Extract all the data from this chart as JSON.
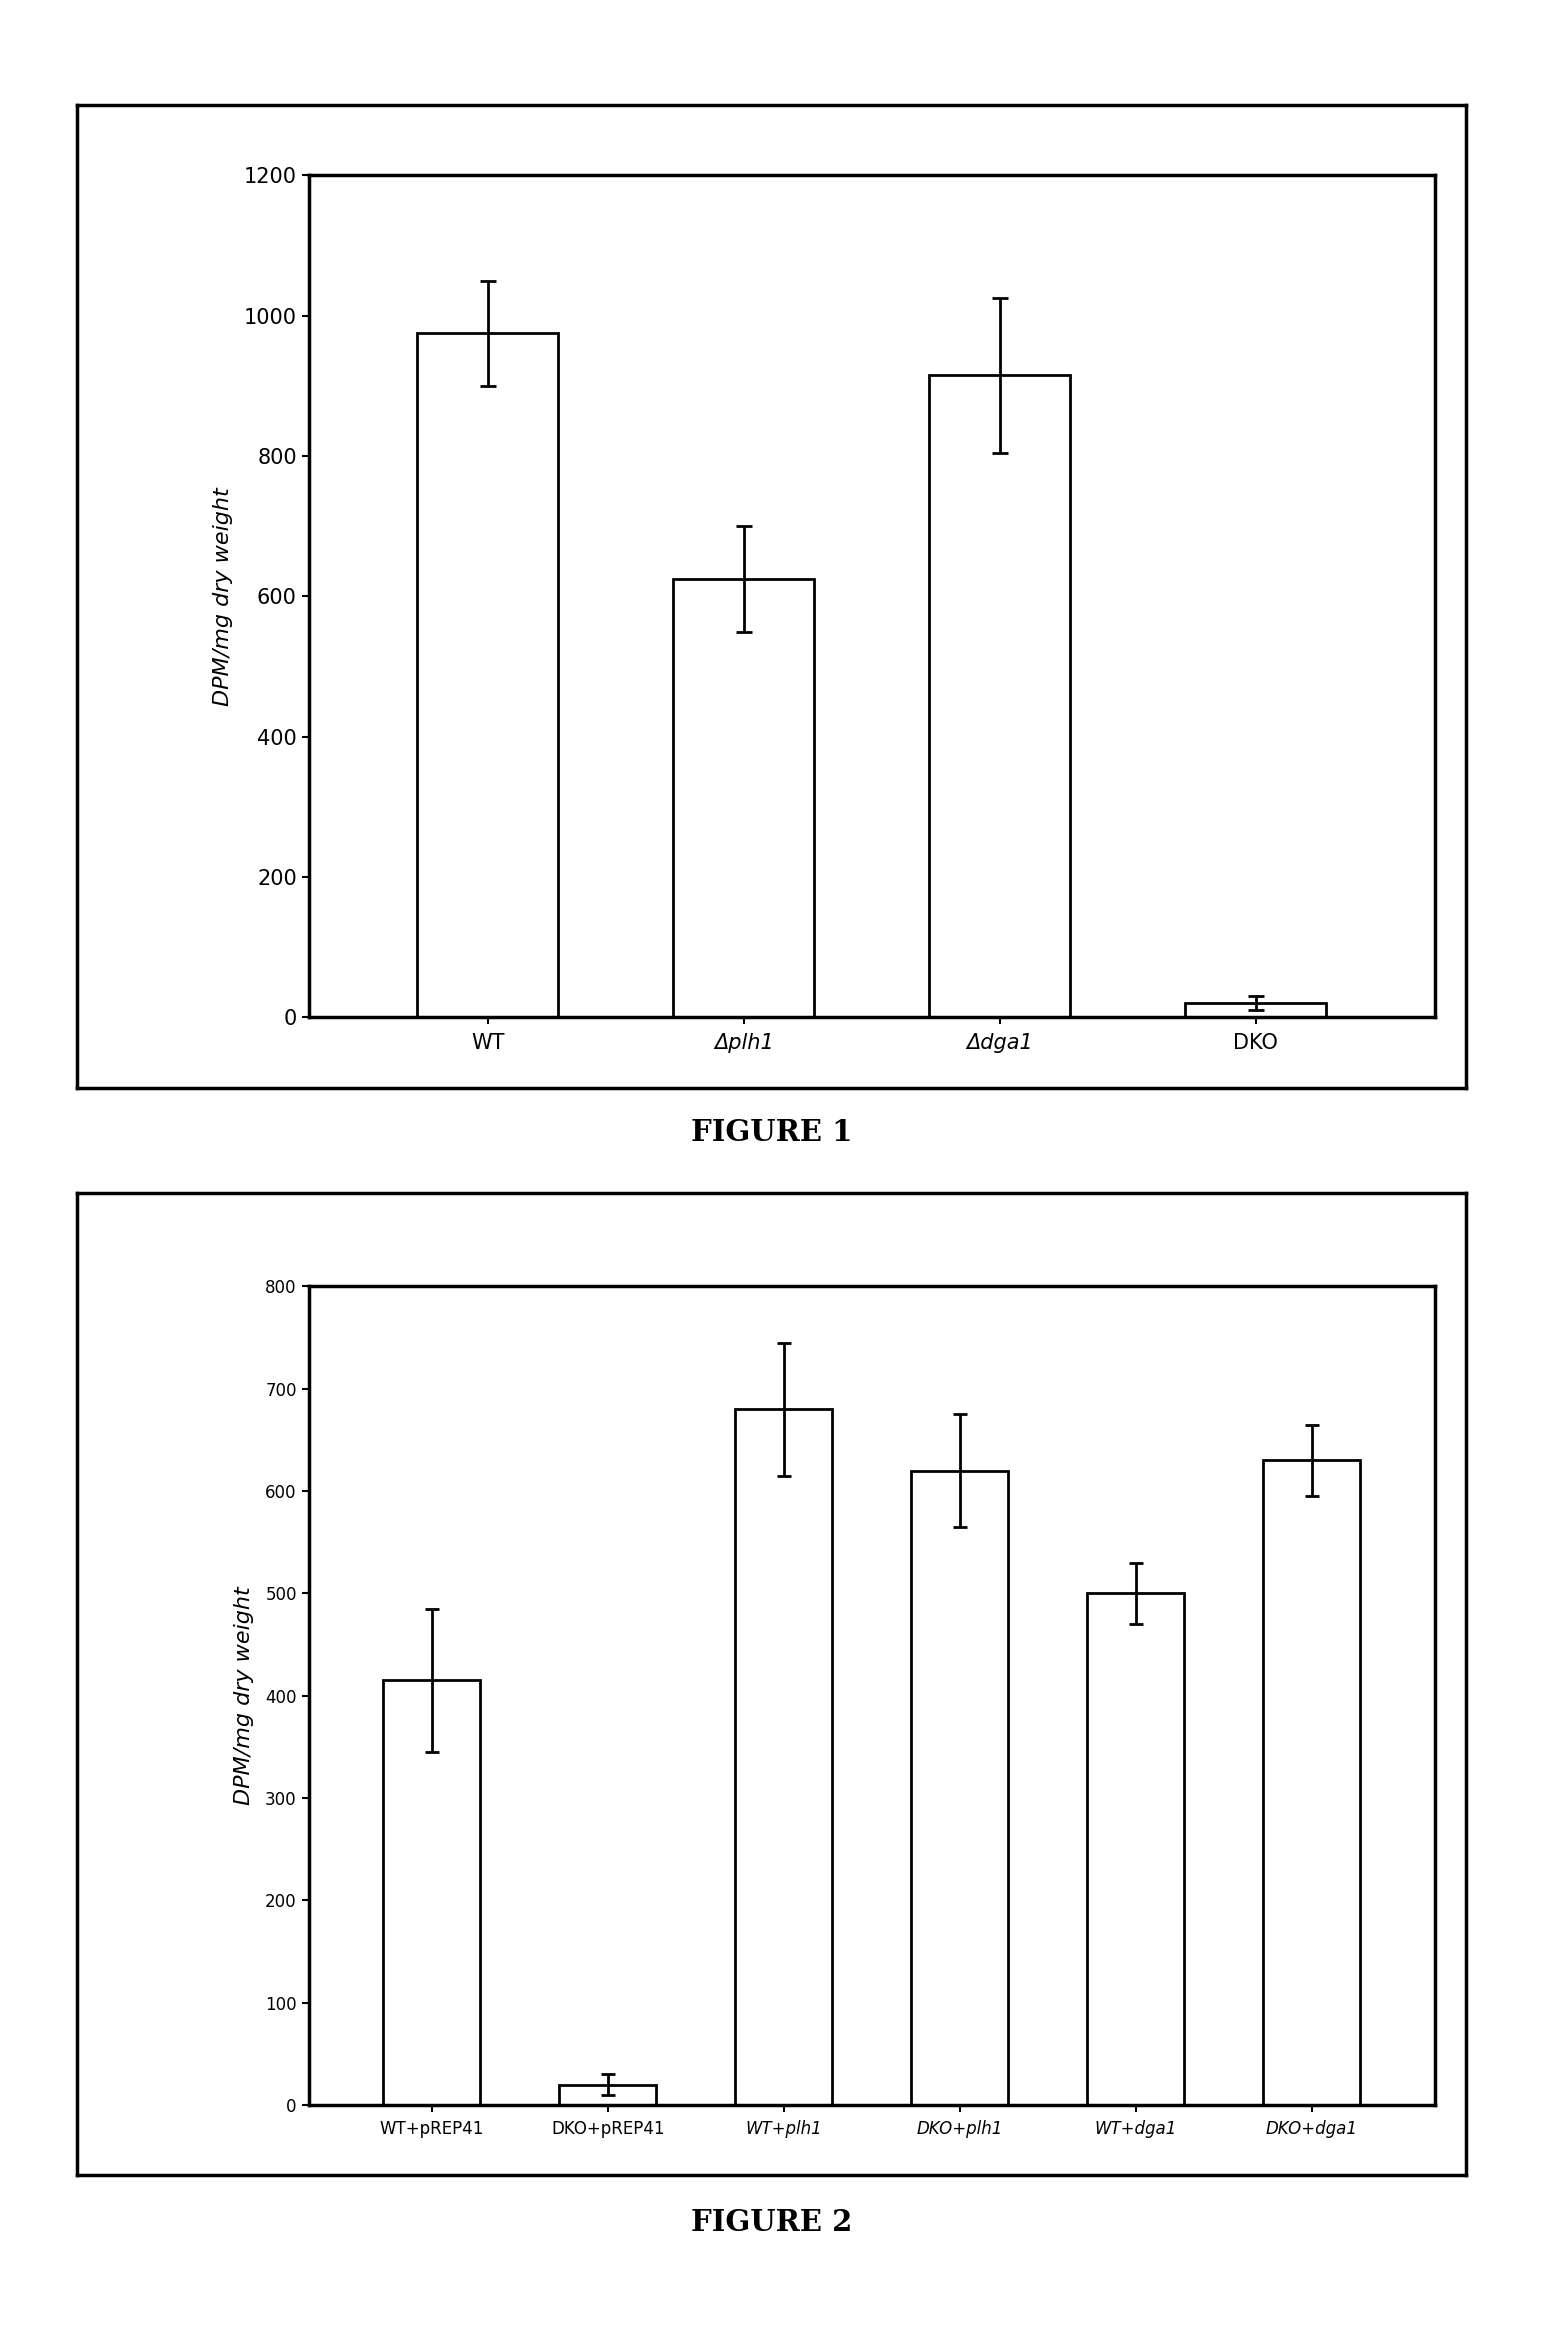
{
  "fig1": {
    "categories": [
      "WT",
      "Δplh1",
      "Δdga1",
      "DKO"
    ],
    "values": [
      975,
      625,
      915,
      20
    ],
    "errors": [
      75,
      75,
      110,
      10
    ],
    "ylim": [
      0,
      1200
    ],
    "yticks": [
      0,
      200,
      400,
      600,
      800,
      1000,
      1200
    ],
    "ylabel": "DPM/mg dry weight",
    "title": "FIGURE 1",
    "bar_color": "#ffffff",
    "edge_color": "#000000"
  },
  "fig2": {
    "categories": [
      "WT+pREP41",
      "DKO+pREP41",
      "WT+plh1",
      "DKO+plh1",
      "WT+dga1",
      "DKO+dga1"
    ],
    "values": [
      415,
      20,
      680,
      620,
      500,
      630
    ],
    "errors": [
      70,
      10,
      65,
      55,
      30,
      35
    ],
    "ylim": [
      0,
      800
    ],
    "yticks": [
      0,
      100,
      200,
      300,
      400,
      500,
      600,
      700,
      800
    ],
    "ylabel": "DPM/mg dry weight",
    "title": "FIGURE 2",
    "bar_color": "#ffffff",
    "edge_color": "#000000"
  },
  "background_color": "#ffffff"
}
